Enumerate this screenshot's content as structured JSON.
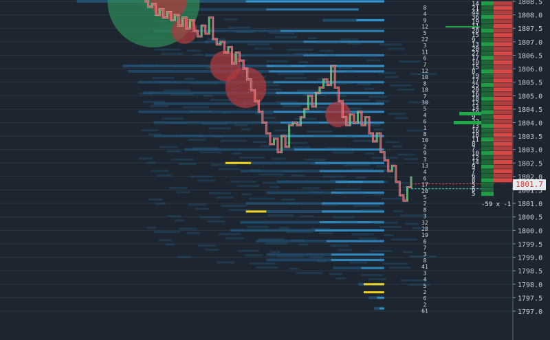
{
  "colors": {
    "background": "#1c2530",
    "grid": "#2b3845",
    "candle_up": "#3fbf5a",
    "candle_down": "#e0454b",
    "heatmap_blue": "#2a86c4",
    "heatmap_bright": "#3aa6e6",
    "bubble_buy": "#2e8b57",
    "bubble_sell": "#b23a3e",
    "large_order": "#f2d21a",
    "ladder_bid": "#24a84a",
    "ladder_ask": "#e04a44",
    "last_price_text": "#d0392f"
  },
  "last_price": {
    "label": "1801.7",
    "value": 1801.7
  },
  "bottom_ladder_label": "-59 x -1",
  "chart_data": {
    "type": "line",
    "title": "",
    "xlabel": "",
    "ylabel": "",
    "ylim": [
      1796.7,
      1808.6
    ],
    "y_ticks": [
      "1808.5",
      "1808.0",
      "1807.5",
      "1807.0",
      "1806.5",
      "1806.0",
      "1805.5",
      "1805.0",
      "1804.5",
      "1804.0",
      "1803.5",
      "1803.0",
      "1802.5",
      "1802.0",
      "1801.5",
      "1801.0",
      "1800.5",
      "1800.0",
      "1799.5",
      "1799.0",
      "1798.5",
      "1798.0",
      "1797.5",
      "1797.0"
    ],
    "y_tick_values": [
      1808.5,
      1808.0,
      1807.5,
      1807.0,
      1806.5,
      1806.0,
      1805.5,
      1805.0,
      1804.5,
      1804.0,
      1803.5,
      1803.0,
      1802.5,
      1802.0,
      1801.5,
      1801.0,
      1800.5,
      1800.0,
      1799.5,
      1799.0,
      1798.5,
      1798.0,
      1797.5,
      1797.0
    ],
    "grid": true,
    "series": [
      {
        "values": [
          1808.5,
          1808.3,
          1808.4,
          1808.0,
          1808.2,
          1807.9,
          1808.1,
          1807.8,
          1808.0,
          1807.6,
          1807.9,
          1807.5,
          1807.8,
          1807.4,
          1807.2,
          1807.6,
          1807.3,
          1807.9,
          1807.1,
          1806.9,
          1807.0,
          1806.6,
          1806.8,
          1806.2,
          1806.6,
          1806.3,
          1806.0,
          1805.6,
          1805.2,
          1804.8,
          1804.4,
          1804.0,
          1803.6,
          1803.2,
          1803.4,
          1802.9,
          1803.5,
          1803.1,
          1803.9,
          1804.0,
          1803.9,
          1804.2,
          1804.5,
          1805.0,
          1804.6,
          1805.1,
          1805.3,
          1805.6,
          1805.4,
          1806.1,
          1805.3,
          1804.8,
          1804.2,
          1803.9,
          1804.3,
          1804.0,
          1804.4,
          1803.9,
          1804.2,
          1803.6,
          1803.3,
          1803.6,
          1802.9,
          1802.6,
          1802.2,
          1802.4,
          1801.8,
          1801.3,
          1801.1,
          1801.6,
          1802.0
        ]
      }
    ]
  },
  "heatmap_lines": [
    {
      "price": 1808.5,
      "x0": 0.15,
      "x1": 0.75,
      "level": 0.9
    },
    {
      "price": 1808.2,
      "x0": 0.3,
      "x1": 0.7,
      "level": 0.4
    },
    {
      "price": 1807.8,
      "x0": 0.63,
      "x1": 0.75,
      "level": 0.9
    },
    {
      "price": 1807.4,
      "x0": 0.3,
      "x1": 0.75,
      "level": 0.5
    },
    {
      "price": 1807.0,
      "x0": 0.4,
      "x1": 0.75,
      "level": 0.4
    },
    {
      "price": 1806.5,
      "x0": 0.4,
      "x1": 0.75,
      "level": 0.4
    },
    {
      "price": 1806.1,
      "x0": 0.24,
      "x1": 0.75,
      "level": 0.8
    },
    {
      "price": 1805.9,
      "x0": 0.25,
      "x1": 0.75,
      "level": 0.6
    },
    {
      "price": 1805.5,
      "x0": 0.27,
      "x1": 0.75,
      "level": 0.5
    },
    {
      "price": 1805.1,
      "x0": 0.28,
      "x1": 0.75,
      "level": 0.7
    },
    {
      "price": 1804.7,
      "x0": 0.3,
      "x1": 0.75,
      "level": 0.5
    },
    {
      "price": 1804.4,
      "x0": 0.27,
      "x1": 0.75,
      "level": 0.6
    },
    {
      "price": 1804.0,
      "x0": 0.3,
      "x1": 0.75,
      "level": 0.5
    },
    {
      "price": 1803.5,
      "x0": 0.3,
      "x1": 0.75,
      "level": 0.5
    },
    {
      "price": 1803.0,
      "x0": 0.36,
      "x1": 0.75,
      "level": 0.5
    },
    {
      "price": 1802.5,
      "x0": 0.45,
      "x1": 0.75,
      "level": 0.6
    },
    {
      "price": 1802.2,
      "x0": 0.47,
      "x1": 0.75,
      "level": 0.5
    },
    {
      "price": 1801.8,
      "x0": 0.54,
      "x1": 0.75,
      "level": 0.9
    },
    {
      "price": 1801.4,
      "x0": 0.52,
      "x1": 0.75,
      "level": 0.6
    },
    {
      "price": 1801.0,
      "x0": 0.48,
      "x1": 0.75,
      "level": 0.6
    },
    {
      "price": 1800.7,
      "x0": 0.48,
      "x1": 0.75,
      "level": 0.7
    },
    {
      "price": 1800.3,
      "x0": 0.47,
      "x1": 0.75,
      "level": 0.6
    },
    {
      "price": 1800.0,
      "x0": 0.45,
      "x1": 0.75,
      "level": 0.7
    },
    {
      "price": 1799.6,
      "x0": 0.5,
      "x1": 0.75,
      "level": 0.5
    },
    {
      "price": 1799.1,
      "x0": 0.52,
      "x1": 0.75,
      "level": 0.6
    },
    {
      "price": 1798.9,
      "x0": 0.52,
      "x1": 0.75,
      "level": 0.6
    },
    {
      "price": 1798.6,
      "x0": 0.65,
      "x1": 0.75,
      "level": 0.5
    },
    {
      "price": 1798.0,
      "x0": 0.7,
      "x1": 0.75,
      "level": 0.8
    },
    {
      "price": 1797.5,
      "x0": 0.72,
      "x1": 0.75,
      "level": 0.7
    },
    {
      "price": 1797.1,
      "x0": 0.73,
      "x1": 0.75,
      "level": 0.8
    }
  ],
  "large_orders": [
    {
      "price": 1802.5,
      "x0": 0.44,
      "x1": 0.49
    },
    {
      "price": 1800.7,
      "x0": 0.48,
      "x1": 0.52
    },
    {
      "price": 1798.0,
      "x0": 0.71,
      "x1": 0.75
    },
    {
      "price": 1797.7,
      "x0": 0.71,
      "x1": 0.75
    }
  ],
  "bubbles": [
    {
      "x": 0.3,
      "price": 1808.5,
      "r": 0.09,
      "side": "buy"
    },
    {
      "x": 0.33,
      "price": 1808.5,
      "r": 0.035,
      "side": "sell"
    },
    {
      "x": 0.36,
      "price": 1807.4,
      "r": 0.025,
      "side": "sell"
    },
    {
      "x": 0.44,
      "price": 1806.1,
      "r": 0.03,
      "side": "sell"
    },
    {
      "x": 0.48,
      "price": 1805.3,
      "r": 0.04,
      "side": "sell"
    },
    {
      "x": 0.66,
      "price": 1804.3,
      "r": 0.025,
      "side": "sell"
    }
  ],
  "dom_numbers": [
    "8",
    "4",
    "9",
    "12",
    "5",
    "22",
    "3",
    "11",
    "6",
    "7",
    "12",
    "10",
    "8",
    "18",
    "7",
    "30",
    "5",
    "4",
    "6",
    "1",
    "8",
    "10",
    "2",
    "9",
    "3",
    "13",
    "4",
    "6",
    "17",
    "20",
    "5",
    "2",
    "8",
    "3",
    "32",
    "28",
    "19",
    "6",
    "7",
    "3",
    "8",
    "41",
    "3",
    "4",
    "5",
    "2",
    "6",
    "2",
    "61"
  ],
  "ladder_rows": [
    "14",
    "21",
    "44",
    "36",
    "19",
    "11",
    "28",
    "15",
    "9",
    "13",
    "20",
    "27",
    "17",
    "10",
    "15",
    "8",
    "19",
    "17",
    "25",
    "20",
    "16",
    "18",
    "12",
    "14",
    "10",
    "9",
    "22",
    "13",
    "16",
    "18",
    "11",
    "8",
    "7",
    "10",
    "12",
    "14",
    "9",
    "7",
    "6",
    "8",
    "5",
    "6",
    "5"
  ]
}
